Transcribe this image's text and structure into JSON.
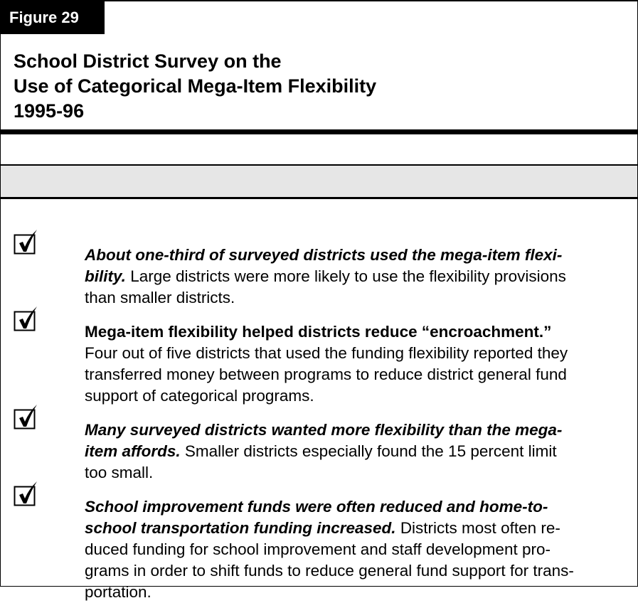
{
  "figure_label": "Figure 29",
  "title_lines": [
    "School District Survey on the",
    "Use of Categorical Mega-Item Flexibility",
    "1995-96"
  ],
  "items": [
    {
      "lead_italic": true,
      "lines": [
        [
          {
            "lead": "About one-third of surveyed districts used the mega-item flexi-"
          }
        ],
        [
          {
            "lead": "bility."
          },
          {
            "text": "Large districts were more likely to use the flexibility provisions"
          }
        ],
        [
          {
            "text": "than smaller districts."
          }
        ]
      ]
    },
    {
      "lead_italic": false,
      "lines": [
        [
          {
            "lead": "Mega-item flexibility helped districts reduce “encroachment.”"
          }
        ],
        [
          {
            "text": "Four out of five districts that used the funding flexibility reported they"
          }
        ],
        [
          {
            "text": "transferred money between programs to reduce district general fund"
          }
        ],
        [
          {
            "text": "support of categorical programs."
          }
        ]
      ]
    },
    {
      "lead_italic": true,
      "lines": [
        [
          {
            "lead": "Many surveyed districts wanted more flexibility than the mega-"
          }
        ],
        [
          {
            "lead": "item affords."
          },
          {
            "text": "Smaller districts especially found the 15 percent limit"
          }
        ],
        [
          {
            "text": "too small."
          }
        ]
      ]
    },
    {
      "lead_italic": true,
      "lines": [
        [
          {
            "lead": "School improvement funds were often reduced and home-to-"
          }
        ],
        [
          {
            "lead": "school transportation funding increased."
          },
          {
            "text": "Districts most often re-"
          }
        ],
        [
          {
            "text": "duced funding for school improvement and staff development pro-"
          }
        ],
        [
          {
            "text": "grams in order to shift funds to reduce general fund support for trans-"
          }
        ],
        [
          {
            "text": "portation."
          }
        ]
      ]
    }
  ]
}
